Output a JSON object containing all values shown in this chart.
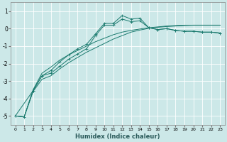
{
  "xlabel": "Humidex (Indice chaleur)",
  "background_color": "#cce8e8",
  "grid_color": "#b0d0d0",
  "line_color": "#1a7a6e",
  "xlim": [
    -0.5,
    23.5
  ],
  "ylim": [
    -5.5,
    1.5
  ],
  "yticks": [
    -5,
    -4,
    -3,
    -2,
    -1,
    0,
    1
  ],
  "xticks": [
    0,
    1,
    2,
    3,
    4,
    5,
    6,
    7,
    8,
    9,
    10,
    11,
    12,
    13,
    14,
    15,
    16,
    17,
    18,
    19,
    20,
    21,
    22,
    23
  ],
  "line1_x": [
    0,
    1,
    2,
    3,
    4,
    5,
    6,
    7,
    8,
    9,
    10,
    11,
    12,
    13,
    14,
    15,
    16,
    17,
    18,
    19,
    20,
    21,
    22,
    23
  ],
  "line1_y": [
    -5.0,
    -5.05,
    -3.5,
    -2.55,
    -2.2,
    -1.8,
    -1.5,
    -1.25,
    -1.0,
    -0.75,
    -0.55,
    -0.35,
    -0.2,
    -0.1,
    -0.02,
    0.05,
    0.1,
    0.15,
    0.18,
    0.2,
    0.2,
    0.2,
    0.2,
    0.2
  ],
  "line2_x": [
    0,
    1,
    2,
    3,
    4,
    5,
    6,
    7,
    8,
    9,
    10,
    11,
    12,
    13,
    14,
    15,
    16,
    17,
    18,
    19,
    20,
    21,
    22,
    23
  ],
  "line2_y": [
    -5.0,
    -5.05,
    -3.55,
    -2.7,
    -2.55,
    -2.15,
    -1.75,
    -1.45,
    -1.15,
    -0.4,
    0.2,
    0.2,
    0.55,
    0.4,
    0.45,
    0.05,
    -0.05,
    0.0,
    -0.1,
    -0.15,
    -0.15,
    -0.2,
    -0.2,
    -0.25
  ],
  "line3_x": [
    0,
    2,
    3,
    4,
    5,
    6,
    7,
    8,
    9,
    10,
    11,
    12,
    13,
    14,
    15,
    16,
    17,
    18,
    19,
    20,
    21,
    22,
    23
  ],
  "line3_y": [
    -5.0,
    -3.55,
    -2.7,
    -2.4,
    -1.9,
    -1.5,
    -1.15,
    -0.9,
    -0.3,
    0.3,
    0.3,
    0.75,
    0.55,
    0.6,
    0.05,
    -0.05,
    0.0,
    -0.1,
    -0.15,
    -0.15,
    -0.2,
    -0.2,
    -0.25
  ],
  "line4_x": [
    0,
    1,
    2,
    3,
    4,
    5,
    6,
    7,
    8,
    9,
    10,
    11,
    12,
    13,
    14,
    15,
    16,
    17,
    18,
    19,
    20,
    21,
    22,
    23
  ],
  "line4_y": [
    -5.0,
    -5.05,
    -3.6,
    -2.9,
    -2.7,
    -2.3,
    -1.95,
    -1.65,
    -1.35,
    -1.1,
    -0.85,
    -0.6,
    -0.4,
    -0.2,
    -0.08,
    0.02,
    0.08,
    0.12,
    0.15,
    0.18,
    0.2,
    0.2,
    0.2,
    0.2
  ]
}
